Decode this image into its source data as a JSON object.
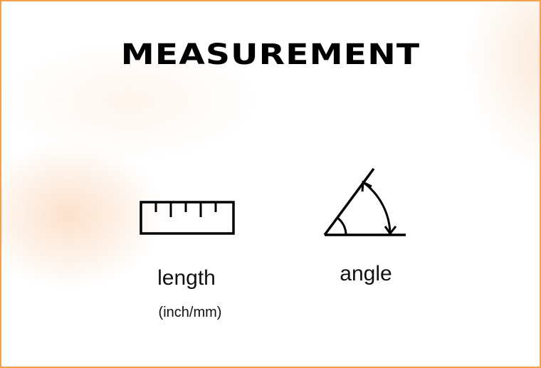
{
  "title": "MEASUREMENT",
  "items": [
    {
      "icon": "ruler-icon",
      "label": "length",
      "sublabel": "(inch/mm)"
    },
    {
      "icon": "angle-icon",
      "label": "angle"
    }
  ],
  "colors": {
    "border": "#f7a04a",
    "text": "#000000",
    "glow": "#fac8a0"
  }
}
